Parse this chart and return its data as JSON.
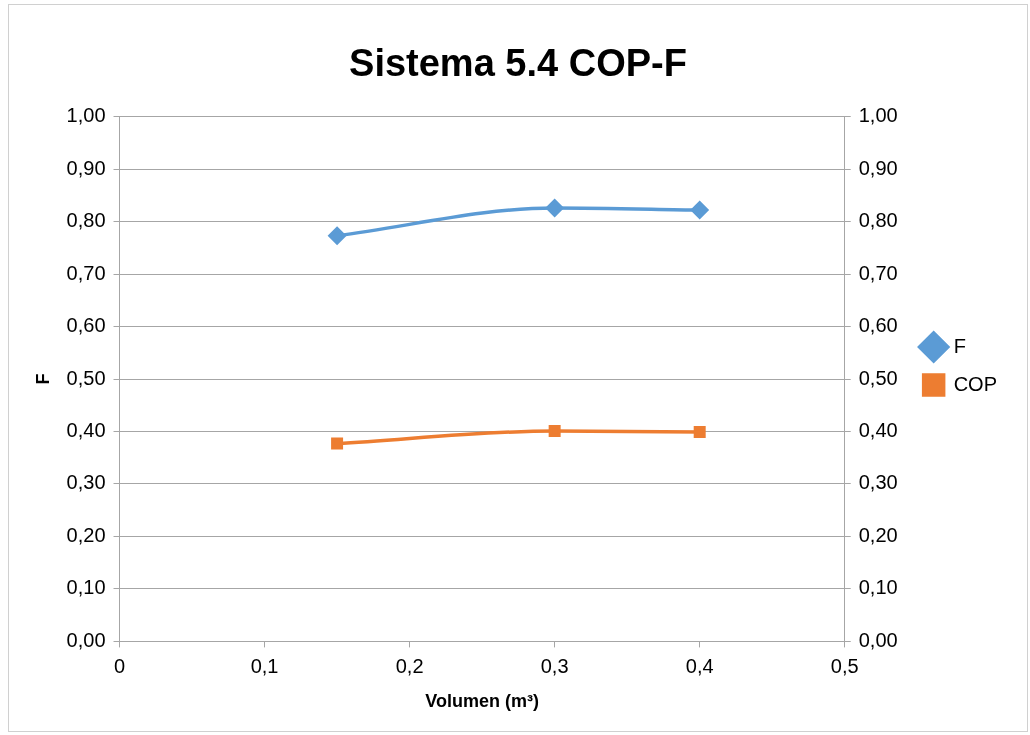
{
  "chart_data": {
    "type": "line",
    "title": "Sistema 5.4 COP-F",
    "xlabel": "Volumen (m³)",
    "ylabel": "F",
    "x": [
      0.15,
      0.3,
      0.4
    ],
    "series": [
      {
        "name": "F",
        "color": "#5b9bd5",
        "marker": "diamond",
        "values": [
          0.773,
          0.826,
          0.822
        ]
      },
      {
        "name": "COP",
        "color": "#ed7d31",
        "marker": "square",
        "values": [
          0.377,
          0.401,
          0.399
        ]
      }
    ],
    "xlim": [
      0,
      0.5
    ],
    "xticks": [
      0,
      {
        "value": 0.1,
        "label": "0,1"
      },
      {
        "value": 0.2,
        "label": "0,2"
      },
      {
        "value": 0.3,
        "label": "0,3"
      },
      {
        "value": 0.4,
        "label": "0,4"
      },
      {
        "value": 0.5,
        "label": "0,5"
      }
    ],
    "ylim": [
      0,
      1
    ],
    "yticks": [
      {
        "value": 0,
        "label": "0,00"
      },
      {
        "value": 0.1,
        "label": "0,10"
      },
      {
        "value": 0.2,
        "label": "0,20"
      },
      {
        "value": 0.3,
        "label": "0,30"
      },
      {
        "value": 0.4,
        "label": "0,40"
      },
      {
        "value": 0.5,
        "label": "0,50"
      },
      {
        "value": 0.6,
        "label": "0,60"
      },
      {
        "value": 0.7,
        "label": "0,70"
      },
      {
        "value": 0.8,
        "label": "0,80"
      },
      {
        "value": 0.9,
        "label": "0,90"
      },
      {
        "value": 1,
        "label": "1,00"
      }
    ],
    "y2lim": [
      0,
      1
    ],
    "y2ticks": [
      {
        "value": 0,
        "label": "0,00"
      },
      {
        "value": 0.1,
        "label": "0,10"
      },
      {
        "value": 0.2,
        "label": "0,20"
      },
      {
        "value": 0.3,
        "label": "0,30"
      },
      {
        "value": 0.4,
        "label": "0,40"
      },
      {
        "value": 0.5,
        "label": "0,50"
      },
      {
        "value": 0.6,
        "label": "0,60"
      },
      {
        "value": 0.7,
        "label": "0,70"
      },
      {
        "value": 0.8,
        "label": "0,80"
      },
      {
        "value": 0.9,
        "label": "0,90"
      },
      {
        "value": 1,
        "label": "1,00"
      }
    ],
    "grid": "y",
    "legend": "right",
    "line_style": "solid"
  }
}
